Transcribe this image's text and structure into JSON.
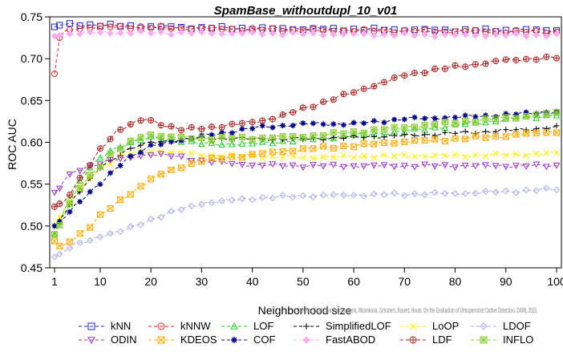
{
  "chart_data": {
    "type": "line",
    "title": "SpamBase_withoutdupl_10_v01",
    "xlabel": "Neighborhood size",
    "ylabel": "ROC AUC",
    "xlim": [
      0,
      100
    ],
    "ylim": [
      0.45,
      0.75
    ],
    "x_ticks": [
      1,
      10,
      20,
      30,
      40,
      50,
      60,
      70,
      80,
      90,
      100
    ],
    "y_ticks": [
      0.45,
      0.5,
      0.55,
      0.6,
      0.65,
      0.7,
      0.75
    ],
    "grid": false,
    "legend_position": "bottom",
    "watermark": "Campos, Zimek, Sander, Campello, Micenková, Schubert, Assent, Houle. On the Evaluation of Unsupervised Outlier Detection. DAMI, 2015.",
    "series": [
      {
        "name": "kNN",
        "color": "#2222cc",
        "marker": "square",
        "anchors": [
          [
            1,
            0.738
          ],
          [
            2,
            0.74
          ],
          [
            3,
            0.741
          ],
          [
            5,
            0.741
          ],
          [
            10,
            0.74
          ],
          [
            20,
            0.738
          ],
          [
            40,
            0.736
          ],
          [
            60,
            0.735
          ],
          [
            80,
            0.734
          ],
          [
            100,
            0.734
          ]
        ]
      },
      {
        "name": "kNNW",
        "color": "#ee2222",
        "marker": "circle",
        "anchors": [
          [
            1,
            0.682
          ],
          [
            2,
            0.725
          ],
          [
            3,
            0.733
          ],
          [
            5,
            0.736
          ],
          [
            10,
            0.738
          ],
          [
            15,
            0.738
          ],
          [
            30,
            0.736
          ],
          [
            50,
            0.734
          ],
          [
            70,
            0.733
          ],
          [
            100,
            0.732
          ]
        ]
      },
      {
        "name": "LOF",
        "color": "#22cc22",
        "marker": "triangle-up",
        "anchors": [
          [
            1,
            0.49
          ],
          [
            3,
            0.52
          ],
          [
            5,
            0.545
          ],
          [
            8,
            0.57
          ],
          [
            12,
            0.59
          ],
          [
            16,
            0.6
          ],
          [
            20,
            0.605
          ],
          [
            25,
            0.603
          ],
          [
            30,
            0.598
          ],
          [
            40,
            0.598
          ],
          [
            50,
            0.603
          ],
          [
            60,
            0.608
          ],
          [
            70,
            0.613
          ],
          [
            80,
            0.62
          ],
          [
            90,
            0.627
          ],
          [
            100,
            0.633
          ]
        ]
      },
      {
        "name": "SimplifiedLOF",
        "color": "#000000",
        "marker": "plus",
        "anchors": [
          [
            1,
            0.5
          ],
          [
            3,
            0.515
          ],
          [
            5,
            0.535
          ],
          [
            8,
            0.555
          ],
          [
            10,
            0.57
          ],
          [
            15,
            0.59
          ],
          [
            20,
            0.6
          ],
          [
            30,
            0.605
          ],
          [
            40,
            0.604
          ],
          [
            50,
            0.604
          ],
          [
            60,
            0.606
          ],
          [
            70,
            0.608
          ],
          [
            80,
            0.611
          ],
          [
            90,
            0.614
          ],
          [
            100,
            0.618
          ]
        ]
      },
      {
        "name": "LoOP",
        "color": "#ffee00",
        "marker": "x",
        "anchors": [
          [
            1,
            0.5
          ],
          [
            3,
            0.52
          ],
          [
            5,
            0.54
          ],
          [
            10,
            0.57
          ],
          [
            15,
            0.585
          ],
          [
            20,
            0.59
          ],
          [
            25,
            0.588
          ],
          [
            30,
            0.585
          ],
          [
            40,
            0.583
          ],
          [
            50,
            0.582
          ],
          [
            60,
            0.583
          ],
          [
            70,
            0.584
          ],
          [
            80,
            0.584
          ],
          [
            90,
            0.585
          ],
          [
            100,
            0.587
          ]
        ]
      },
      {
        "name": "LDOF",
        "color": "#aaaaee",
        "marker": "diamond",
        "anchors": [
          [
            1,
            0.463
          ],
          [
            3,
            0.47
          ],
          [
            5,
            0.477
          ],
          [
            8,
            0.483
          ],
          [
            10,
            0.488
          ],
          [
            15,
            0.495
          ],
          [
            20,
            0.508
          ],
          [
            25,
            0.518
          ],
          [
            30,
            0.527
          ],
          [
            40,
            0.533
          ],
          [
            50,
            0.536
          ],
          [
            60,
            0.537
          ],
          [
            70,
            0.538
          ],
          [
            80,
            0.539
          ],
          [
            90,
            0.541
          ],
          [
            100,
            0.544
          ]
        ]
      },
      {
        "name": "ODIN",
        "color": "#9933cc",
        "marker": "triangle-down",
        "anchors": [
          [
            1,
            0.54
          ],
          [
            2,
            0.545
          ],
          [
            3,
            0.555
          ],
          [
            4,
            0.56
          ],
          [
            5,
            0.565
          ],
          [
            8,
            0.572
          ],
          [
            12,
            0.578
          ],
          [
            16,
            0.582
          ],
          [
            20,
            0.586
          ],
          [
            25,
            0.583
          ],
          [
            30,
            0.578
          ],
          [
            35,
            0.575
          ],
          [
            40,
            0.573
          ],
          [
            50,
            0.572
          ],
          [
            60,
            0.572
          ],
          [
            70,
            0.572
          ],
          [
            80,
            0.572
          ],
          [
            90,
            0.572
          ],
          [
            100,
            0.572
          ]
        ]
      },
      {
        "name": "KDEOS",
        "color": "#ffaa00",
        "marker": "square-x",
        "anchors": [
          [
            1,
            0.482
          ],
          [
            2,
            0.476
          ],
          [
            3,
            0.478
          ],
          [
            5,
            0.486
          ],
          [
            8,
            0.5
          ],
          [
            10,
            0.512
          ],
          [
            15,
            0.535
          ],
          [
            20,
            0.556
          ],
          [
            25,
            0.569
          ],
          [
            30,
            0.578
          ],
          [
            40,
            0.585
          ],
          [
            50,
            0.592
          ],
          [
            60,
            0.596
          ],
          [
            70,
            0.601
          ],
          [
            80,
            0.604
          ],
          [
            90,
            0.608
          ],
          [
            100,
            0.613
          ]
        ]
      },
      {
        "name": "COF",
        "color": "#000088",
        "marker": "asterisk",
        "anchors": [
          [
            1,
            0.5
          ],
          [
            3,
            0.51
          ],
          [
            5,
            0.525
          ],
          [
            8,
            0.54
          ],
          [
            10,
            0.55
          ],
          [
            15,
            0.58
          ],
          [
            20,
            0.595
          ],
          [
            25,
            0.602
          ],
          [
            30,
            0.607
          ],
          [
            40,
            0.617
          ],
          [
            50,
            0.622
          ],
          [
            60,
            0.622
          ],
          [
            70,
            0.628
          ],
          [
            80,
            0.63
          ],
          [
            90,
            0.633
          ],
          [
            100,
            0.637
          ]
        ]
      },
      {
        "name": "FastABOD",
        "color": "#ffaaee",
        "marker": "diamond-filled",
        "anchors": [
          [
            1,
            0.727
          ],
          [
            3,
            0.729
          ],
          [
            5,
            0.73
          ],
          [
            10,
            0.731
          ],
          [
            20,
            0.731
          ],
          [
            40,
            0.73
          ],
          [
            60,
            0.729
          ],
          [
            80,
            0.728
          ],
          [
            100,
            0.728
          ]
        ]
      },
      {
        "name": "LDF",
        "color": "#aa2222",
        "marker": "circle-plus",
        "anchors": [
          [
            1,
            0.523
          ],
          [
            3,
            0.53
          ],
          [
            5,
            0.547
          ],
          [
            8,
            0.573
          ],
          [
            10,
            0.592
          ],
          [
            13,
            0.612
          ],
          [
            16,
            0.621
          ],
          [
            19,
            0.628
          ],
          [
            22,
            0.622
          ],
          [
            26,
            0.615
          ],
          [
            30,
            0.617
          ],
          [
            35,
            0.62
          ],
          [
            40,
            0.624
          ],
          [
            45,
            0.63
          ],
          [
            50,
            0.64
          ],
          [
            55,
            0.65
          ],
          [
            60,
            0.66
          ],
          [
            65,
            0.67
          ],
          [
            70,
            0.68
          ],
          [
            75,
            0.686
          ],
          [
            80,
            0.69
          ],
          [
            85,
            0.694
          ],
          [
            90,
            0.698
          ],
          [
            95,
            0.7
          ],
          [
            100,
            0.701
          ]
        ]
      },
      {
        "name": "INFLO",
        "color": "#88cc33",
        "marker": "square-x-hatched",
        "anchors": [
          [
            1,
            0.49
          ],
          [
            3,
            0.512
          ],
          [
            5,
            0.538
          ],
          [
            8,
            0.56
          ],
          [
            12,
            0.585
          ],
          [
            16,
            0.6
          ],
          [
            19,
            0.61
          ],
          [
            22,
            0.608
          ],
          [
            26,
            0.605
          ],
          [
            30,
            0.605
          ],
          [
            40,
            0.605
          ],
          [
            50,
            0.607
          ],
          [
            60,
            0.612
          ],
          [
            70,
            0.618
          ],
          [
            80,
            0.624
          ],
          [
            90,
            0.629
          ],
          [
            100,
            0.635
          ]
        ]
      }
    ]
  }
}
